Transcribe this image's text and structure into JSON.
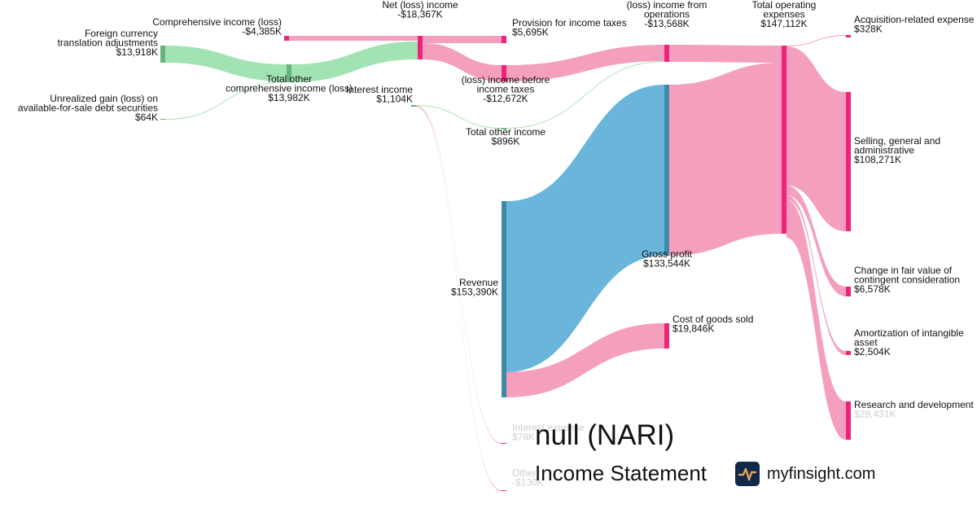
{
  "title": "null (NARI)",
  "subtitle": "Income Statement",
  "brand": {
    "name": "myfinsight.com",
    "logo_icon": "pulse-line-icon",
    "logo_color": "#10294a",
    "logo_accent": "#e8a25a"
  },
  "colors": {
    "revenue": "#6ab5db",
    "revenue_node": "#3d89a8",
    "expense": "#f49aba",
    "expense_node": "#f0237a",
    "income": "#9de2b0",
    "income_node": "#67b27f"
  },
  "chart_data": {
    "type": "sankey",
    "units": "USD thousands",
    "nodes": [
      {
        "id": "revenue",
        "name": "Revenue",
        "value_label": "$153,390K",
        "value": 153390,
        "kind": "revenue"
      },
      {
        "id": "gross_profit",
        "name": "Gross profit",
        "value_label": "$133,544K",
        "value": 133544,
        "kind": "revenue"
      },
      {
        "id": "cogs",
        "name": "Cost of goods sold",
        "value_label": "$19,846K",
        "value": 19846,
        "kind": "expense"
      },
      {
        "id": "opex",
        "name": "Total operating expenses",
        "value_label": "$147,112K",
        "value": 147112,
        "kind": "expense"
      },
      {
        "id": "op_income",
        "name": "(loss) income from operations",
        "value_label": "-$13,568K",
        "value": -13568,
        "kind": "expense"
      },
      {
        "id": "acq",
        "name": "Acquisition-related expense",
        "value_label": "$328K",
        "value": 328,
        "kind": "expense"
      },
      {
        "id": "sga",
        "name": "Selling, general and administrative",
        "value_label": "$108,271K",
        "value": 108271,
        "kind": "expense"
      },
      {
        "id": "contingent",
        "name": "Change in fair value of contingent consideration",
        "value_label": "$6,578K",
        "value": 6578,
        "kind": "expense"
      },
      {
        "id": "amort",
        "name": "Amortization of intangible asset",
        "value_label": "$2,504K",
        "value": 2504,
        "kind": "expense"
      },
      {
        "id": "rnd",
        "name": "Research and development",
        "value_label": "$29,431K",
        "value": 29431,
        "kind": "expense"
      },
      {
        "id": "other_income",
        "name": "Total other income",
        "value_label": "$896K",
        "value": 896,
        "kind": "income"
      },
      {
        "id": "interest_income",
        "name": "Interest income",
        "value_label": "$1,104K",
        "value": 1104,
        "kind": "income"
      },
      {
        "id": "interest_expense",
        "name": "Interest expense",
        "value_label": "$78K",
        "value": 78,
        "kind": "expense"
      },
      {
        "id": "other_exp",
        "name": "Other",
        "value_label": "-$130K",
        "value": -130,
        "kind": "expense"
      },
      {
        "id": "pretax",
        "name": "(loss) income before income taxes",
        "value_label": "-$12,672K",
        "value": -12672,
        "kind": "expense"
      },
      {
        "id": "tax",
        "name": "Provision for income taxes",
        "value_label": "$5,695K",
        "value": 5695,
        "kind": "expense"
      },
      {
        "id": "net_income",
        "name": "Net (loss) income",
        "value_label": "-$18,367K",
        "value": -18367,
        "kind": "expense"
      },
      {
        "id": "comprehensive",
        "name": "Comprehensive income (loss)",
        "value_label": "-$4,385K",
        "value": -4385,
        "kind": "expense"
      },
      {
        "id": "total_oci",
        "name": "Total other comprehensive income (loss)",
        "value_label": "$13,982K",
        "value": 13982,
        "kind": "income"
      },
      {
        "id": "fx",
        "name": "Foreign currency translation adjustments",
        "value_label": "$13,918K",
        "value": 13918,
        "kind": "income"
      },
      {
        "id": "afs",
        "name": "Unrealized gain (loss) on available-for-sale debt securities",
        "value_label": "$64K",
        "value": 64,
        "kind": "income"
      }
    ],
    "links": [
      {
        "source": "revenue",
        "target": "gross_profit",
        "value": 133544,
        "kind": "revenue"
      },
      {
        "source": "revenue",
        "target": "cogs",
        "value": 19846,
        "kind": "expense"
      },
      {
        "source": "gross_profit",
        "target": "opex",
        "value": 133544,
        "kind": "expense"
      },
      {
        "source": "op_income",
        "target": "opex",
        "value": 13568,
        "kind": "expense"
      },
      {
        "source": "opex",
        "target": "acq",
        "value": 328,
        "kind": "expense"
      },
      {
        "source": "opex",
        "target": "sga",
        "value": 108271,
        "kind": "expense"
      },
      {
        "source": "opex",
        "target": "contingent",
        "value": 6578,
        "kind": "expense"
      },
      {
        "source": "opex",
        "target": "amort",
        "value": 2504,
        "kind": "expense"
      },
      {
        "source": "opex",
        "target": "rnd",
        "value": 29431,
        "kind": "expense"
      },
      {
        "source": "other_income",
        "target": "op_income",
        "value": 896,
        "kind": "income"
      },
      {
        "source": "pretax",
        "target": "op_income",
        "value": 12672,
        "kind": "expense"
      },
      {
        "source": "interest_income",
        "target": "other_income",
        "value": 896,
        "kind": "income"
      },
      {
        "source": "interest_income",
        "target": "interest_expense",
        "value": 78,
        "kind": "expense"
      },
      {
        "source": "interest_income",
        "target": "other_exp",
        "value": 130,
        "kind": "expense"
      },
      {
        "source": "net_income",
        "target": "pretax",
        "value": 12672,
        "kind": "expense"
      },
      {
        "source": "net_income",
        "target": "tax",
        "value": 5695,
        "kind": "expense"
      },
      {
        "source": "comprehensive",
        "target": "net_income",
        "value": 4385,
        "kind": "expense"
      },
      {
        "source": "total_oci",
        "target": "net_income",
        "value": 13982,
        "kind": "income"
      },
      {
        "source": "fx",
        "target": "total_oci",
        "value": 13918,
        "kind": "income"
      },
      {
        "source": "afs",
        "target": "total_oci",
        "value": 64,
        "kind": "income"
      }
    ]
  }
}
